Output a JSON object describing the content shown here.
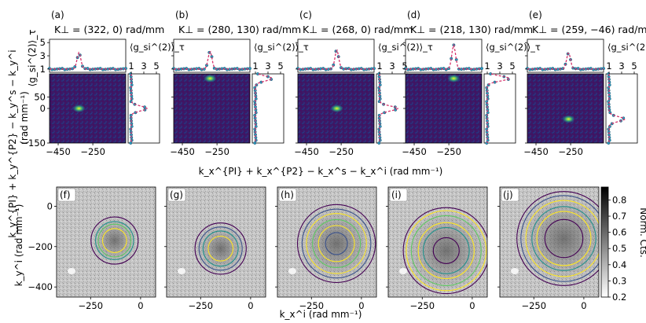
{
  "figure": {
    "top_xlabel": "k_x^{PI} + k_x^{P2} − k_x^s − k_x^i (rad mm⁻¹)",
    "top_ylabel_line1": "k_y^{PI} + k_y^{P2} − k_y^s − k_y^i",
    "top_ylabel_line2": "(rad mm⁻¹)",
    "g2_axis_label": "⟨g_si^(2)⟩_τ",
    "bottom_xlabel": "k_x^i (rad mm⁻¹)",
    "bottom_ylabel": "k_y^i (rad mm⁻¹)",
    "colorbar_label": "Norm. Cts."
  },
  "chart_data": {
    "top_panels": {
      "type": "heatmap",
      "marginal_type": "line",
      "xticks": [
        -450,
        -250
      ],
      "yticks": [
        50,
        0,
        -150
      ],
      "xlim": [
        -500,
        -60
      ],
      "ylim": [
        -150,
        150
      ],
      "g2_ticks": [
        1,
        3,
        5
      ],
      "g2_lim": [
        0.5,
        5.5
      ],
      "panels": [
        {
          "label": "(a)",
          "title": "K⊥ = (322, 0) rad/mm",
          "spot_x": -330,
          "spot_y": 0,
          "peak_g2": 3.5,
          "fit_color": "#d6336c"
        },
        {
          "label": "(b)",
          "title": "K⊥ = (280, 130) rad/mm",
          "spot_x": -290,
          "spot_y": 130,
          "peak_g2": 3.7,
          "fit_color": "#d6336c"
        },
        {
          "label": "(c)",
          "title": "K⊥ = (268, 0) rad/mm",
          "spot_x": -275,
          "spot_y": 0,
          "peak_g2": 3.9,
          "fit_color": "#d6336c"
        },
        {
          "label": "(d)",
          "title": "K⊥ = (218, 130) rad/mm",
          "spot_x": -222,
          "spot_y": 130,
          "peak_g2": 4.6,
          "fit_color": "#d6336c"
        },
        {
          "label": "(e)",
          "title": "K⊥ = (259, −46) rad/mm",
          "spot_x": -262,
          "spot_y": -46,
          "peak_g2": 3.5,
          "fit_color": "#d6336c"
        }
      ]
    },
    "bottom_panels": {
      "type": "heatmap",
      "xticks": [
        -250,
        0
      ],
      "yticks": [
        0,
        -200,
        -400
      ],
      "xlim": [
        -420,
        75
      ],
      "ylim": [
        -450,
        95
      ],
      "colorbar": {
        "ticks": [
          0.2,
          0.3,
          0.4,
          0.5,
          0.6,
          0.7,
          0.8
        ],
        "range": [
          0.2,
          0.88
        ]
      },
      "panels": [
        {
          "label": "(f)",
          "center": [
            -130,
            -170
          ],
          "rings": [
            {
              "r": 60,
              "color": "#fde725"
            },
            {
              "r": 82,
              "color": "#5ec962"
            },
            {
              "r": 95,
              "color": "#21918c"
            },
            {
              "r": 118,
              "color": "#440154"
            }
          ]
        },
        {
          "label": "(g)",
          "center": [
            -150,
            -210
          ],
          "rings": [
            {
              "r": 62,
              "color": "#fde725"
            },
            {
              "r": 88,
              "color": "#21918c"
            },
            {
              "r": 108,
              "color": "#3b528b"
            },
            {
              "r": 128,
              "color": "#440154"
            }
          ]
        },
        {
          "label": "(h)",
          "center": [
            -125,
            -185
          ],
          "rings": [
            {
              "r": 55,
              "color": "#3b528b"
            },
            {
              "r": 90,
              "color": "#fde725"
            },
            {
              "r": 120,
              "color": "#5ec962"
            },
            {
              "r": 150,
              "color": "#fde725"
            },
            {
              "r": 172,
              "color": "#3b528b"
            },
            {
              "r": 195,
              "color": "#440154"
            }
          ]
        },
        {
          "label": "(i)",
          "center": [
            -130,
            -220
          ],
          "rings": [
            {
              "r": 65,
              "color": "#440154"
            },
            {
              "r": 115,
              "color": "#21918c"
            },
            {
              "r": 140,
              "color": "#fde725"
            },
            {
              "r": 175,
              "color": "#5ec962"
            },
            {
              "r": 200,
              "color": "#fde725"
            },
            {
              "r": 215,
              "color": "#440154"
            }
          ]
        },
        {
          "label": "(j)",
          "center": [
            -100,
            -160
          ],
          "rings": [
            {
              "r": 95,
              "color": "#440154"
            },
            {
              "r": 135,
              "color": "#fde725"
            },
            {
              "r": 160,
              "color": "#21918c"
            },
            {
              "r": 190,
              "color": "#fde725"
            },
            {
              "r": 215,
              "color": "#3b528b"
            },
            {
              "r": 235,
              "color": "#440154"
            }
          ]
        }
      ]
    }
  }
}
